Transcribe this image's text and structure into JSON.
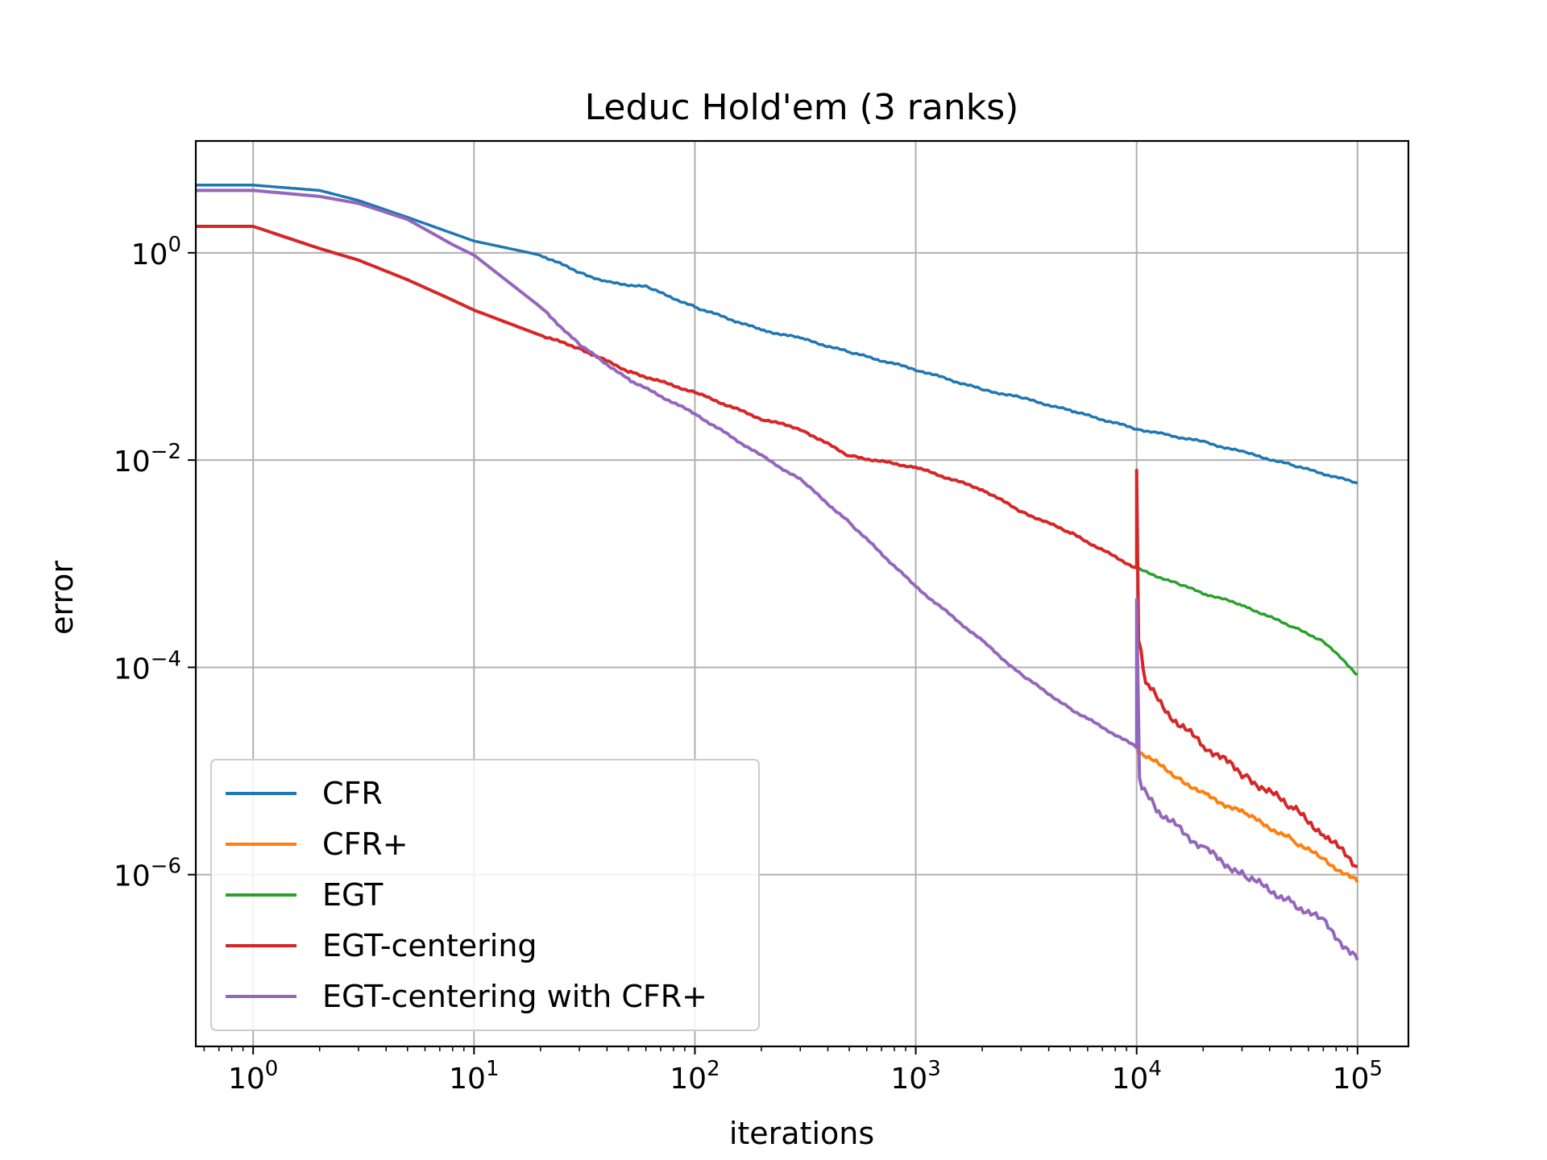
{
  "chart_data": {
    "type": "line",
    "title": "Leduc Hold'em (3 ranks)",
    "xlabel": "iterations",
    "ylabel": "error",
    "x_scale": "log",
    "y_scale": "log",
    "xlim": [
      0.55,
      170000
    ],
    "ylim": [
      2.2e-08,
      12
    ],
    "x_ticks": [
      {
        "value": 1,
        "base": "10",
        "exp": "0"
      },
      {
        "value": 10,
        "base": "10",
        "exp": "1"
      },
      {
        "value": 100,
        "base": "10",
        "exp": "2"
      },
      {
        "value": 1000,
        "base": "10",
        "exp": "3"
      },
      {
        "value": 10000,
        "base": "10",
        "exp": "4"
      },
      {
        "value": 100000,
        "base": "10",
        "exp": "5"
      }
    ],
    "y_ticks": [
      {
        "value": 1,
        "base": "10",
        "exp": "0"
      },
      {
        "value": 0.01,
        "base": "10",
        "exp": "−2"
      },
      {
        "value": 0.0001,
        "base": "10",
        "exp": "−4"
      },
      {
        "value": 1e-06,
        "base": "10",
        "exp": "−6"
      }
    ],
    "grid": true,
    "legend_position": "lower-left",
    "series": [
      {
        "name": "CFR",
        "color": "#1f77b4",
        "points": [
          [
            0.55,
            4.5
          ],
          [
            1,
            4.5
          ],
          [
            2,
            4.0
          ],
          [
            3,
            3.2
          ],
          [
            5,
            2.2
          ],
          [
            10,
            1.3
          ],
          [
            20,
            0.95
          ],
          [
            30,
            0.65
          ],
          [
            40,
            0.52
          ],
          [
            60,
            0.47
          ],
          [
            100,
            0.3
          ],
          [
            200,
            0.18
          ],
          [
            300,
            0.15
          ],
          [
            500,
            0.11
          ],
          [
            1000,
            0.075
          ],
          [
            2000,
            0.048
          ],
          [
            3000,
            0.04
          ],
          [
            5000,
            0.03
          ],
          [
            10000,
            0.02
          ],
          [
            20000,
            0.015
          ],
          [
            30000,
            0.012
          ],
          [
            50000,
            0.009
          ],
          [
            100000,
            0.006
          ]
        ]
      },
      {
        "name": "CFR+",
        "color": "#ff7f0e",
        "points": [
          [
            10000,
            1.6e-05
          ],
          [
            15000,
            9e-06
          ],
          [
            20000,
            6e-06
          ],
          [
            30000,
            4e-06
          ],
          [
            50000,
            2.2e-06
          ],
          [
            70000,
            1.4e-06
          ],
          [
            100000,
            8.5e-07
          ]
        ]
      },
      {
        "name": "EGT",
        "color": "#2ca02c",
        "points": [
          [
            10000,
            0.0009
          ],
          [
            15000,
            0.00065
          ],
          [
            20000,
            0.00052
          ],
          [
            30000,
            0.0004
          ],
          [
            50000,
            0.00025
          ],
          [
            70000,
            0.00018
          ],
          [
            100000,
            8.5e-05
          ]
        ]
      },
      {
        "name": "EGT-centering",
        "color": "#d62728",
        "points": [
          [
            0.55,
            1.8
          ],
          [
            1,
            1.8
          ],
          [
            2,
            1.1
          ],
          [
            3,
            0.85
          ],
          [
            5,
            0.55
          ],
          [
            8,
            0.35
          ],
          [
            10,
            0.28
          ],
          [
            20,
            0.16
          ],
          [
            30,
            0.12
          ],
          [
            50,
            0.072
          ],
          [
            100,
            0.045
          ],
          [
            200,
            0.025
          ],
          [
            300,
            0.02
          ],
          [
            500,
            0.011
          ],
          [
            1000,
            0.0085
          ],
          [
            2000,
            0.0052
          ],
          [
            3000,
            0.0032
          ],
          [
            5000,
            0.002
          ],
          [
            10000,
            0.0009
          ],
          [
            10000,
            0.008
          ],
          [
            10200,
            0.0002
          ],
          [
            11000,
            7e-05
          ],
          [
            15000,
            3e-05
          ],
          [
            20000,
            1.8e-05
          ],
          [
            30000,
            9.5e-06
          ],
          [
            50000,
            4.5e-06
          ],
          [
            70000,
            2.5e-06
          ],
          [
            100000,
            1.2e-06
          ]
        ]
      },
      {
        "name": "EGT-centering with CFR+",
        "color": "#9467bd",
        "points": [
          [
            0.55,
            4.0
          ],
          [
            1,
            4.0
          ],
          [
            2,
            3.5
          ],
          [
            3,
            3.0
          ],
          [
            5,
            2.1
          ],
          [
            8,
            1.2
          ],
          [
            10,
            0.95
          ],
          [
            20,
            0.3
          ],
          [
            30,
            0.13
          ],
          [
            50,
            0.06
          ],
          [
            100,
            0.028
          ],
          [
            200,
            0.011
          ],
          [
            300,
            0.0065
          ],
          [
            500,
            0.0025
          ],
          [
            1000,
            0.0006
          ],
          [
            2000,
            0.00018
          ],
          [
            3000,
            8.5e-05
          ],
          [
            5000,
            4e-05
          ],
          [
            10000,
            1.7e-05
          ],
          [
            10000,
            0.00045
          ],
          [
            10300,
            8e-06
          ],
          [
            12000,
            4.5e-06
          ],
          [
            15000,
            3e-06
          ],
          [
            20000,
            1.8e-06
          ],
          [
            30000,
            1e-06
          ],
          [
            50000,
            5.5e-07
          ],
          [
            70000,
            3.5e-07
          ],
          [
            100000,
            1.5e-07
          ]
        ]
      }
    ]
  }
}
